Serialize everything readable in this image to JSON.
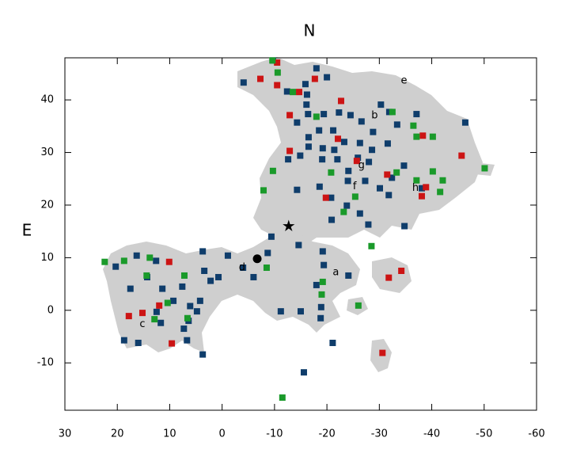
{
  "chart_data": {
    "type": "scatter",
    "title": "N",
    "y_label": "E",
    "xlim": [
      30,
      -60
    ],
    "ylim": [
      -19,
      48
    ],
    "xticks": [
      30,
      20,
      10,
      0,
      -10,
      -20,
      -30,
      -40,
      -50,
      -60
    ],
    "yticks": [
      -10,
      0,
      10,
      20,
      30,
      40
    ],
    "marker": "square",
    "series": [
      {
        "color": "#0f3d6b",
        "x": [
          -9.7,
          -4.1,
          -18.0,
          -20.0,
          -15.9,
          -12.4,
          -16.2,
          -16.1,
          -16.4,
          -19.4,
          -22.3,
          -24.5,
          -26.6,
          -30.3,
          -31.9,
          -14.3,
          -18.5,
          -21.2,
          -23.3,
          -26.3,
          -28.8,
          -33.4,
          -37.1,
          -46.4,
          -16.5,
          -16.5,
          -19.2,
          -21.4,
          -19.1,
          -14.9,
          -12.6,
          -22.0,
          -25.9,
          -28.6,
          -31.6,
          -28.0,
          -24.1,
          -24.0,
          -18.6,
          -14.3,
          -20.8,
          -23.8,
          -27.3,
          -30.1,
          -32.4,
          -34.7,
          -38.1,
          -31.8,
          -26.3,
          -27.9,
          -20.9,
          -34.8,
          -9.4,
          -8.7,
          -14.6,
          -19.2,
          -19.4,
          -24.1,
          -18.0,
          -18.9,
          -11.2,
          -15.0,
          -18.8,
          -21.1,
          -15.6,
          16.3,
          20.3,
          17.5,
          14.3,
          12.6,
          11.4,
          12.5,
          9.3,
          7.6,
          6.1,
          4.2,
          2.2,
          0.7,
          3.4,
          -1.1,
          -4.0,
          -6.0,
          4.8,
          6.4,
          7.3,
          6.7,
          3.7,
          11.7,
          18.7,
          16.0,
          3.7
        ],
        "values": [
          47.5,
          43.3,
          46.0,
          44.3,
          43.0,
          41.6,
          41.0,
          39.1,
          37.3,
          37.3,
          37.6,
          37.1,
          35.9,
          39.1,
          37.7,
          35.7,
          34.2,
          34.2,
          32.0,
          31.8,
          33.9,
          35.3,
          37.3,
          35.7,
          32.9,
          31.1,
          30.8,
          30.5,
          28.7,
          29.4,
          28.7,
          28.7,
          29.0,
          30.5,
          31.7,
          28.2,
          26.5,
          24.6,
          23.5,
          22.9,
          21.4,
          19.9,
          24.6,
          23.2,
          25.2,
          27.5,
          23.2,
          21.9,
          18.4,
          16.3,
          17.2,
          16.0,
          14.0,
          10.9,
          12.4,
          11.2,
          8.6,
          6.6,
          4.8,
          0.6,
          -0.2,
          -0.2,
          -1.5,
          -6.2,
          -11.8,
          10.4,
          8.3,
          4.1,
          6.3,
          9.4,
          4.1,
          -0.3,
          1.8,
          4.5,
          0.8,
          1.8,
          5.6,
          6.3,
          7.5,
          10.4,
          8.1,
          6.3,
          -0.2,
          -2.0,
          -3.5,
          -5.7,
          -8.4,
          -2.4,
          -5.7,
          -6.2,
          11.2
        ]
      },
      {
        "color": "#cc1414",
        "x": [
          -7.3,
          -10.5,
          -10.5,
          -14.7,
          -17.7,
          -22.7,
          -12.9,
          -22.1,
          -12.9,
          -25.7,
          -31.5,
          -38.3,
          -38.9,
          -38.1,
          -45.7,
          -19.8,
          10.1,
          12.0,
          15.2,
          17.8,
          9.6,
          -31.8,
          -34.2,
          -30.6
        ],
        "values": [
          44.0,
          42.8,
          47.1,
          41.5,
          44.0,
          39.8,
          37.1,
          32.6,
          30.3,
          28.4,
          25.8,
          33.2,
          23.4,
          21.7,
          29.4,
          21.4,
          9.2,
          0.9,
          -0.5,
          -1.1,
          -6.3,
          6.2,
          7.5,
          -8.1
        ]
      },
      {
        "color": "#1a9a2a",
        "x": [
          22.4,
          18.7,
          13.8,
          14.4,
          7.2,
          10.4,
          12.9,
          6.6,
          -9.6,
          -10.6,
          -13.5,
          -18.0,
          -32.5,
          -36.5,
          -37.1,
          -40.2,
          -40.2,
          -37.1,
          -42.1,
          -41.6,
          -50.1,
          -33.3,
          -9.7,
          -7.9,
          -20.8,
          -25.4,
          -23.2,
          -28.5,
          -19.2,
          -19.0,
          -8.5,
          -26.0,
          -11.5
        ],
        "values": [
          9.2,
          9.4,
          10.0,
          6.6,
          6.6,
          1.4,
          -1.7,
          -1.5,
          47.5,
          45.2,
          41.5,
          36.8,
          37.7,
          35.1,
          33.0,
          33.0,
          26.4,
          24.7,
          24.7,
          22.5,
          27.0,
          26.2,
          26.5,
          22.8,
          26.2,
          21.6,
          18.7,
          12.2,
          5.4,
          3.0,
          8.1,
          0.9,
          -16.6
        ]
      }
    ],
    "annotations": [
      {
        "text": "a",
        "x": -21.7,
        "y": 7.2
      },
      {
        "text": "b",
        "x": -29.1,
        "y": 37.0
      },
      {
        "text": "c",
        "x": 15.2,
        "y": -2.7
      },
      {
        "text": "d",
        "x": -3.8,
        "y": 8.1
      },
      {
        "text": "e",
        "x": -34.7,
        "y": 43.6
      },
      {
        "text": "f",
        "x": -25.3,
        "y": 23.5
      },
      {
        "text": "g",
        "x": -26.6,
        "y": 27.5
      },
      {
        "text": "h",
        "x": -36.9,
        "y": 23.2
      }
    ],
    "markers": [
      {
        "shape": "star",
        "x": -12.7,
        "y": 16.0
      },
      {
        "shape": "circle",
        "x": -6.7,
        "y": 9.8
      }
    ]
  }
}
